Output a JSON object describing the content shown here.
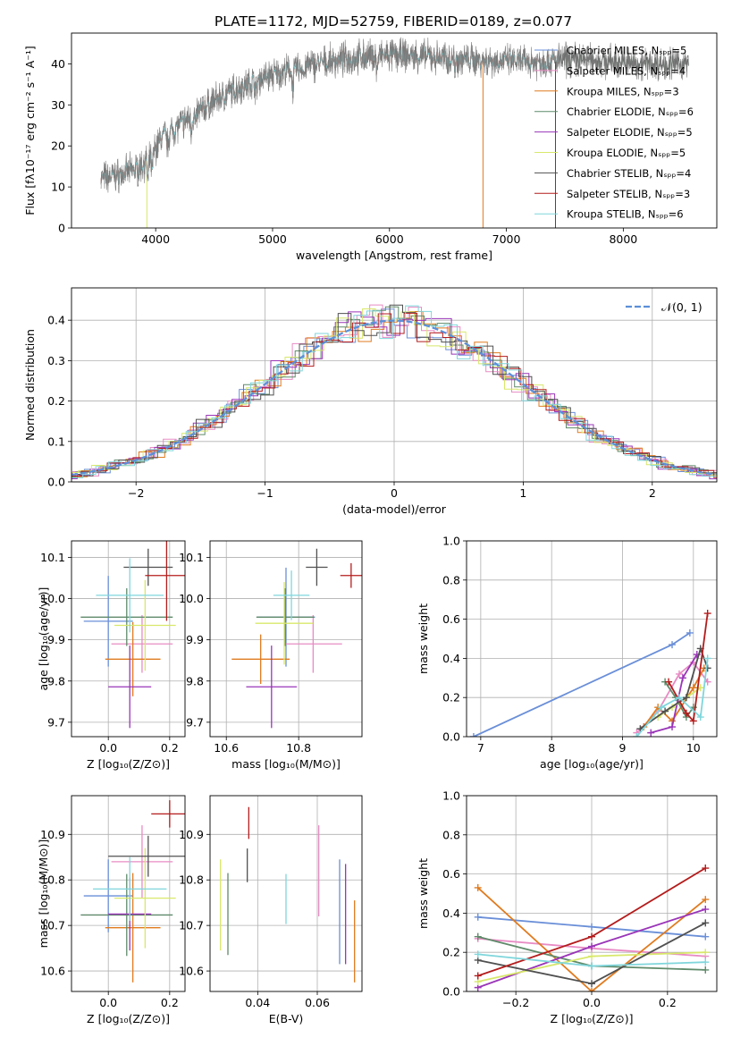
{
  "title": "PLATE=1172, MJD=52759, FIBERID=0189, z=0.077",
  "colors": {
    "chabrier_miles": "#6a8fd8",
    "salpeter_miles": "#e88bc4",
    "kroupa_miles": "#e07b1f",
    "chabrier_elodie": "#5f8a6a",
    "salpeter_elodie": "#9a35b8",
    "kroupa_elodie": "#d8e86a",
    "chabrier_stelib": "#505050",
    "salpeter_stelib": "#b41c1c",
    "kroupa_stelib": "#7fd6dc",
    "gaussian": "#5b8fd8"
  },
  "chart_data": [
    {
      "id": "spectrum",
      "type": "line",
      "xlabel": "wavelength [Angstrom, rest frame]",
      "ylabel": "Flux [fλ10⁻¹⁷ erg cm⁻² s⁻¹ A⁻¹]",
      "xlim": [
        3280,
        8800
      ],
      "ylim": [
        0,
        47.5
      ],
      "xticks": [
        "4000",
        "5000",
        "6000",
        "7000",
        "8000"
      ],
      "yticks": [
        "0",
        "10",
        "20",
        "30",
        "40"
      ],
      "grid": false,
      "legend": "top-right",
      "legend_entries": [
        "Chabrier MILES, Nₛₚₚ=5",
        "Salpeter MILES, Nₛₚₚ=4",
        "Kroupa MILES, Nₛₚₚ=3",
        "Chabrier ELODIE, Nₛₚₚ=6",
        "Salpeter ELODIE, Nₛₚₚ=5",
        "Kroupa ELODIE, Nₛₚₚ=5",
        "Chabrier STELIB, Nₛₚₚ=4",
        "Salpeter STELIB, Nₛₚₚ=3",
        "Kroupa STELIB, Nₛₚₚ=6"
      ],
      "continuum": [
        [
          3530,
          12
        ],
        [
          3700,
          13
        ],
        [
          3850,
          14.5
        ],
        [
          3950,
          17
        ],
        [
          4050,
          22
        ],
        [
          4200,
          25
        ],
        [
          4300,
          27
        ],
        [
          4500,
          31
        ],
        [
          4700,
          34
        ],
        [
          4900,
          36.5
        ],
        [
          5100,
          38
        ],
        [
          5300,
          39.5
        ],
        [
          5500,
          40.5
        ],
        [
          5700,
          41.5
        ],
        [
          5900,
          42
        ],
        [
          6100,
          42
        ],
        [
          6300,
          41.8
        ],
        [
          6500,
          41.3
        ],
        [
          6700,
          41
        ],
        [
          6900,
          40.8
        ],
        [
          7100,
          40.5
        ],
        [
          7300,
          40.5
        ],
        [
          7500,
          41
        ],
        [
          7700,
          41
        ],
        [
          8000,
          40.3
        ],
        [
          8300,
          40
        ],
        [
          8550,
          40
        ]
      ]
    },
    {
      "id": "residuals",
      "type": "histogram",
      "xlabel": "(data-model)/error",
      "ylabel": "Normed distribution",
      "xlim": [
        -2.5,
        2.5
      ],
      "ylim": [
        0,
        0.48
      ],
      "xticks": [
        "−2",
        "−1",
        "0",
        "1",
        "2"
      ],
      "yticks": [
        "0.0",
        "0.1",
        "0.2",
        "0.3",
        "0.4"
      ],
      "grid": true,
      "legend": "top-right",
      "legend_entry": "𝒩(0, 1)",
      "bin_width": 0.1
    },
    {
      "id": "age_vs_Z",
      "type": "errorbar",
      "xlabel": "Z [log₁₀(Z/Z⊙)]",
      "ylabel": "age  [log₁₀(age/yr)]",
      "xlim": [
        -0.12,
        0.25
      ],
      "ylim": [
        9.665,
        10.14
      ],
      "xticks": [
        "0.0",
        "0.2"
      ],
      "yticks": [
        "9.7",
        "9.8",
        "9.9",
        "10.0",
        "10.1"
      ],
      "grid": true,
      "points": [
        {
          "x": 0.0,
          "xerr": 0.08,
          "y": 9.945,
          "yerr": 0.11
        },
        {
          "x": 0.11,
          "xerr": 0.1,
          "y": 9.89,
          "yerr": 0.07
        },
        {
          "x": 0.08,
          "xerr": 0.09,
          "y": 9.853,
          "yerr": 0.09
        },
        {
          "x": 0.06,
          "xerr": 0.15,
          "y": 9.955,
          "yerr": 0.07
        },
        {
          "x": 0.07,
          "xerr": 0.07,
          "y": 9.786,
          "yerr": 0.1
        },
        {
          "x": 0.12,
          "xerr": 0.1,
          "y": 9.935,
          "yerr": 0.11
        },
        {
          "x": 0.13,
          "xerr": 0.08,
          "y": 10.076,
          "yerr": 0.045
        },
        {
          "x": 0.19,
          "xerr": 0.07,
          "y": 10.056,
          "yerr": 0.11
        },
        {
          "x": 0.07,
          "xerr": 0.11,
          "y": 10.008,
          "yerr": 0.09
        }
      ]
    },
    {
      "id": "age_vs_mass",
      "type": "errorbar",
      "xlabel": "mass [log₁₀(M/M⊙)]",
      "ylabel": "",
      "xlim": [
        10.555,
        10.975
      ],
      "ylim": [
        9.665,
        10.14
      ],
      "xticks": [
        "10.6",
        "10.8"
      ],
      "yticks": [
        "9.7",
        "9.8",
        "9.9",
        "10.0",
        "10.1"
      ],
      "grid": true,
      "points": [
        {
          "x": 10.765,
          "xerr": 0.08,
          "y": 9.955,
          "yerr": 0.12
        },
        {
          "x": 10.84,
          "xerr": 0.08,
          "y": 9.89,
          "yerr": 0.07
        },
        {
          "x": 10.695,
          "xerr": 0.08,
          "y": 9.853,
          "yerr": 0.06
        },
        {
          "x": 10.763,
          "xerr": 0.08,
          "y": 9.955,
          "yerr": 0.07
        },
        {
          "x": 10.725,
          "xerr": 0.07,
          "y": 9.786,
          "yerr": 0.1
        },
        {
          "x": 10.76,
          "xerr": 0.08,
          "y": 9.94,
          "yerr": 0.1
        },
        {
          "x": 10.85,
          "xerr": 0.03,
          "y": 10.076,
          "yerr": 0.045
        },
        {
          "x": 10.945,
          "xerr": 0.03,
          "y": 10.056,
          "yerr": 0.03
        },
        {
          "x": 10.78,
          "xerr": 0.05,
          "y": 10.008,
          "yerr": 0.06
        }
      ]
    },
    {
      "id": "weight_vs_age",
      "type": "line",
      "xlabel": "age  [log₁₀(age/yr)]",
      "ylabel": "mass weight",
      "xlim": [
        6.8,
        10.33
      ],
      "ylim": [
        0,
        1.0
      ],
      "xticks": [
        "7",
        "8",
        "9",
        "10"
      ],
      "yticks": [
        "0.0",
        "0.2",
        "0.4",
        "0.6",
        "0.8",
        "1.0"
      ],
      "grid": true,
      "series": [
        {
          "x": [
            6.9,
            9.7,
            9.95
          ],
          "y": [
            0.0,
            0.47,
            0.53
          ]
        },
        {
          "x": [
            9.2,
            9.5,
            9.8,
            10.0,
            10.2
          ],
          "y": [
            0.02,
            0.13,
            0.32,
            0.38,
            0.28
          ]
        },
        {
          "x": [
            9.3,
            9.5,
            9.7,
            10.0,
            10.15
          ],
          "y": [
            0.05,
            0.15,
            0.08,
            0.25,
            0.35
          ]
        },
        {
          "x": [
            9.6,
            9.75,
            9.9,
            10.0
          ],
          "y": [
            0.28,
            0.2,
            0.1,
            0.15
          ]
        },
        {
          "x": [
            9.4,
            9.7,
            9.85,
            10.05
          ],
          "y": [
            0.02,
            0.05,
            0.3,
            0.42
          ]
        },
        {
          "x": [
            9.5,
            9.7,
            9.9,
            10.1
          ],
          "y": [
            0.1,
            0.15,
            0.2,
            0.25
          ]
        },
        {
          "x": [
            9.25,
            9.6,
            9.9,
            10.1,
            10.2
          ],
          "y": [
            0.04,
            0.13,
            0.2,
            0.45,
            0.35
          ]
        },
        {
          "x": [
            9.65,
            9.9,
            10.0,
            10.2
          ],
          "y": [
            0.28,
            0.12,
            0.08,
            0.63
          ]
        },
        {
          "x": [
            9.2,
            9.55,
            9.8,
            10.1,
            10.2
          ],
          "y": [
            0.0,
            0.15,
            0.2,
            0.1,
            0.4
          ]
        }
      ]
    },
    {
      "id": "mass_vs_Z",
      "type": "errorbar",
      "xlabel": "Z [log₁₀(Z/Z⊙)]",
      "ylabel": "mass [log₁₀(M/M⊙)]",
      "xlim": [
        -0.12,
        0.25
      ],
      "ylim": [
        10.555,
        10.985
      ],
      "xticks": [
        "0.0",
        "0.2"
      ],
      "yticks": [
        "10.6",
        "10.7",
        "10.8",
        "10.9"
      ],
      "grid": true,
      "points": [
        {
          "x": 0.0,
          "xerr": 0.08,
          "y": 10.765,
          "yerr": 0.08
        },
        {
          "x": 0.11,
          "xerr": 0.1,
          "y": 10.84,
          "yerr": 0.08
        },
        {
          "x": 0.08,
          "xerr": 0.09,
          "y": 10.695,
          "yerr": 0.12
        },
        {
          "x": 0.06,
          "xerr": 0.15,
          "y": 10.723,
          "yerr": 0.09
        },
        {
          "x": 0.07,
          "xerr": 0.07,
          "y": 10.725,
          "yerr": 0.08
        },
        {
          "x": 0.12,
          "xerr": 0.1,
          "y": 10.76,
          "yerr": 0.11
        },
        {
          "x": 0.13,
          "xerr": 0.13,
          "y": 10.852,
          "yerr": 0.045
        },
        {
          "x": 0.2,
          "xerr": 0.06,
          "y": 10.945,
          "yerr": 0.03
        },
        {
          "x": 0.07,
          "xerr": 0.12,
          "y": 10.78,
          "yerr": 0.07
        }
      ]
    },
    {
      "id": "mass_vs_ebv",
      "type": "errorbar",
      "xlabel": "E(B-V)",
      "ylabel": "",
      "xlim": [
        0.024,
        0.075
      ],
      "ylim": [
        10.555,
        10.985
      ],
      "xticks": [
        "0.04",
        "0.06"
      ],
      "yticks": [
        "10.6",
        "10.7",
        "10.8",
        "10.9"
      ],
      "grid": true,
      "points": [
        {
          "x": 0.0675,
          "xerr": 0.0,
          "y": 10.73,
          "yerr": 0.115
        },
        {
          "x": 0.0605,
          "xerr": 0.0,
          "y": 10.82,
          "yerr": 0.1
        },
        {
          "x": 0.0725,
          "xerr": 0.0,
          "y": 10.665,
          "yerr": 0.09
        },
        {
          "x": 0.03,
          "xerr": 0.0,
          "y": 10.725,
          "yerr": 0.09
        },
        {
          "x": 0.0695,
          "xerr": 0.0,
          "y": 10.725,
          "yerr": 0.11
        },
        {
          "x": 0.0275,
          "xerr": 0.0,
          "y": 10.745,
          "yerr": 0.1
        },
        {
          "x": 0.0365,
          "xerr": 0.0,
          "y": 10.832,
          "yerr": 0.037
        },
        {
          "x": 0.037,
          "xerr": 0.0,
          "y": 10.925,
          "yerr": 0.035
        },
        {
          "x": 0.0495,
          "xerr": 0.0,
          "y": 10.758,
          "yerr": 0.055
        }
      ]
    },
    {
      "id": "weight_vs_Z",
      "type": "line",
      "xlabel": "Z [log₁₀(Z/Z⊙)]",
      "ylabel": "mass weight",
      "xlim": [
        -0.33,
        0.33
      ],
      "ylim": [
        0,
        1.0
      ],
      "xticks": [
        "−0.2",
        "0.0",
        "0.2"
      ],
      "yticks": [
        "0.0",
        "0.2",
        "0.4",
        "0.6",
        "0.8",
        "1.0"
      ],
      "grid": true,
      "series": [
        {
          "x": [
            -0.3,
            0.0,
            0.3
          ],
          "y": [
            0.38,
            0.33,
            0.28
          ]
        },
        {
          "x": [
            -0.3,
            0.0,
            0.3
          ],
          "y": [
            0.27,
            0.22,
            0.18
          ]
        },
        {
          "x": [
            -0.3,
            0.0,
            0.3
          ],
          "y": [
            0.53,
            0.0,
            0.47
          ]
        },
        {
          "x": [
            -0.3,
            0.0,
            0.3
          ],
          "y": [
            0.28,
            0.13,
            0.11
          ]
        },
        {
          "x": [
            -0.3,
            0.0,
            0.3
          ],
          "y": [
            0.02,
            0.23,
            0.42
          ]
        },
        {
          "x": [
            -0.3,
            0.0,
            0.3
          ],
          "y": [
            0.05,
            0.18,
            0.2
          ]
        },
        {
          "x": [
            -0.3,
            0.0,
            0.3
          ],
          "y": [
            0.16,
            0.04,
            0.35
          ]
        },
        {
          "x": [
            -0.3,
            0.0,
            0.3
          ],
          "y": [
            0.08,
            0.28,
            0.63
          ]
        },
        {
          "x": [
            -0.3,
            0.0,
            0.3
          ],
          "y": [
            0.19,
            0.13,
            0.15
          ]
        }
      ]
    }
  ]
}
